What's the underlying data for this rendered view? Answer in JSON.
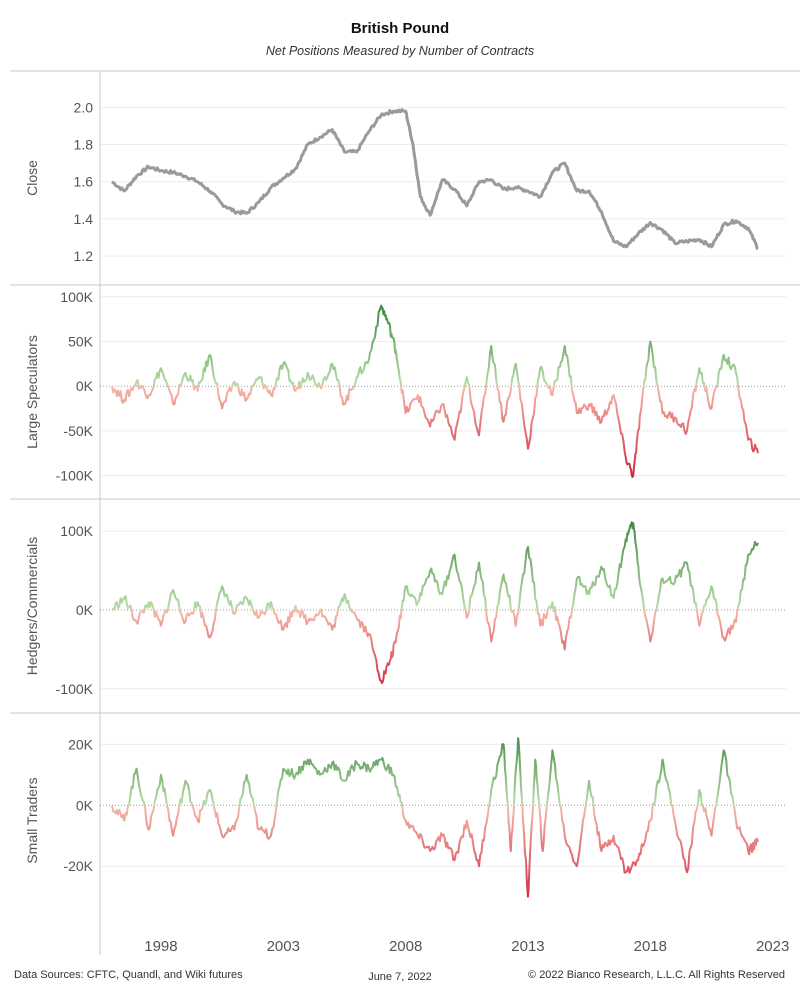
{
  "title": "British Pound",
  "subtitle": "Net Positions Measured by Number of Contracts",
  "footer": {
    "sources": "Data Sources: CFTC, Quandl, and Wiki futures",
    "date": "June 7, 2022",
    "copyright": "© 2022 Bianco Research, L.L.C. All Rights Reserved"
  },
  "colors": {
    "close_line": "#9a9a9a",
    "positive_strong": "#2e7d32",
    "positive_light": "#b8dca8",
    "negative_strong": "#c8102e",
    "negative_light": "#f6b8a8",
    "zero_line": "#999999",
    "grid": "#ececec",
    "border": "#c8c8c8"
  },
  "chart_data": [
    {
      "name": "close",
      "type": "line",
      "ylabel": "Close",
      "ylim": [
        1.12,
        2.12
      ],
      "yticks": [
        1.2,
        1.4,
        1.6,
        1.8,
        2.0
      ],
      "ytick_labels": [
        "1.2",
        "1.4",
        "1.6",
        "1.8",
        "2.0"
      ],
      "x": [
        1996.0,
        1996.5,
        1997.0,
        1997.5,
        1998.0,
        1998.5,
        1999.0,
        1999.5,
        2000.0,
        2000.5,
        2001.0,
        2001.5,
        2002.0,
        2002.5,
        2003.0,
        2003.5,
        2004.0,
        2004.5,
        2005.0,
        2005.5,
        2006.0,
        2006.5,
        2007.0,
        2007.5,
        2008.0,
        2008.3,
        2008.6,
        2009.0,
        2009.5,
        2010.0,
        2010.5,
        2011.0,
        2011.5,
        2012.0,
        2012.5,
        2013.0,
        2013.5,
        2014.0,
        2014.5,
        2015.0,
        2015.5,
        2016.0,
        2016.5,
        2017.0,
        2017.5,
        2018.0,
        2018.5,
        2019.0,
        2019.5,
        2020.0,
        2020.5,
        2021.0,
        2021.5,
        2022.0,
        2022.4
      ],
      "y": [
        1.6,
        1.55,
        1.63,
        1.68,
        1.66,
        1.65,
        1.63,
        1.6,
        1.55,
        1.48,
        1.44,
        1.43,
        1.49,
        1.57,
        1.62,
        1.67,
        1.8,
        1.84,
        1.88,
        1.76,
        1.76,
        1.87,
        1.96,
        1.98,
        1.98,
        1.8,
        1.52,
        1.42,
        1.61,
        1.56,
        1.47,
        1.6,
        1.61,
        1.56,
        1.57,
        1.55,
        1.52,
        1.65,
        1.7,
        1.55,
        1.55,
        1.44,
        1.28,
        1.25,
        1.32,
        1.38,
        1.34,
        1.27,
        1.28,
        1.29,
        1.25,
        1.37,
        1.39,
        1.35,
        1.24
      ]
    },
    {
      "name": "large_speculators",
      "type": "line",
      "ylabel": "Large Speculators",
      "ylim": [
        -115,
        102
      ],
      "yticks": [
        -100,
        -50,
        0,
        50,
        100
      ],
      "ytick_labels": [
        "-100K",
        "-50K",
        "0K",
        "50K",
        "100K"
      ],
      "x": [
        1996.0,
        1996.5,
        1997.0,
        1997.5,
        1998.0,
        1998.5,
        1999.0,
        1999.5,
        2000.0,
        2000.5,
        2001.0,
        2001.5,
        2002.0,
        2002.5,
        2003.0,
        2003.5,
        2004.0,
        2004.5,
        2005.0,
        2005.5,
        2006.0,
        2006.5,
        2007.0,
        2007.3,
        2007.6,
        2008.0,
        2008.5,
        2009.0,
        2009.5,
        2010.0,
        2010.5,
        2011.0,
        2011.5,
        2012.0,
        2012.5,
        2013.0,
        2013.5,
        2014.0,
        2014.5,
        2015.0,
        2015.5,
        2016.0,
        2016.5,
        2017.0,
        2017.3,
        2017.6,
        2018.0,
        2018.5,
        2019.0,
        2019.5,
        2020.0,
        2020.5,
        2021.0,
        2021.5,
        2022.0,
        2022.4
      ],
      "y": [
        0,
        -15,
        5,
        -10,
        20,
        -20,
        15,
        -5,
        35,
        -25,
        5,
        -15,
        10,
        -10,
        25,
        -5,
        15,
        0,
        25,
        -20,
        10,
        30,
        90,
        70,
        40,
        -30,
        -10,
        -45,
        -20,
        -60,
        10,
        -55,
        45,
        -40,
        25,
        -70,
        20,
        -10,
        45,
        -30,
        -20,
        -40,
        -10,
        -80,
        -100,
        -30,
        50,
        -30,
        -35,
        -50,
        20,
        -25,
        35,
        15,
        -60,
        -75
      ]
    },
    {
      "name": "hedgers_commercials",
      "type": "line",
      "ylabel": "Hedgers/Commercials",
      "ylim": [
        -118,
        128
      ],
      "yticks": [
        -100,
        0,
        100
      ],
      "ytick_labels": [
        "-100K",
        "0K",
        "100K"
      ],
      "x": [
        1996.0,
        1996.5,
        1997.0,
        1997.5,
        1998.0,
        1998.5,
        1999.0,
        1999.5,
        2000.0,
        2000.5,
        2001.0,
        2001.5,
        2002.0,
        2002.5,
        2003.0,
        2003.5,
        2004.0,
        2004.5,
        2005.0,
        2005.5,
        2006.0,
        2006.5,
        2007.0,
        2007.3,
        2007.6,
        2008.0,
        2008.5,
        2009.0,
        2009.5,
        2010.0,
        2010.5,
        2011.0,
        2011.5,
        2012.0,
        2012.5,
        2013.0,
        2013.5,
        2014.0,
        2014.5,
        2015.0,
        2015.5,
        2016.0,
        2016.5,
        2017.0,
        2017.3,
        2017.6,
        2018.0,
        2018.5,
        2019.0,
        2019.5,
        2020.0,
        2020.5,
        2021.0,
        2021.5,
        2022.0,
        2022.4
      ],
      "y": [
        0,
        15,
        -15,
        10,
        -20,
        25,
        -15,
        10,
        -35,
        30,
        -5,
        15,
        -10,
        10,
        -25,
        5,
        -15,
        0,
        -25,
        20,
        -10,
        -30,
        -90,
        -70,
        -40,
        30,
        10,
        50,
        20,
        70,
        -10,
        60,
        -40,
        45,
        -20,
        80,
        -20,
        10,
        -50,
        40,
        20,
        55,
        15,
        90,
        110,
        30,
        -40,
        40,
        35,
        60,
        -20,
        30,
        -35,
        -15,
        70,
        85
      ]
    },
    {
      "name": "small_traders",
      "type": "line",
      "ylabel": "Small Traders",
      "ylim": [
        -37,
        27
      ],
      "yticks": [
        -20,
        0,
        20
      ],
      "ytick_labels": [
        "-20K",
        "0K",
        "20K"
      ],
      "x": [
        1996.0,
        1996.5,
        1997.0,
        1997.5,
        1998.0,
        1998.5,
        1999.0,
        1999.5,
        2000.0,
        2000.5,
        2001.0,
        2001.5,
        2002.0,
        2002.5,
        2003.0,
        2003.5,
        2004.0,
        2004.5,
        2005.0,
        2005.5,
        2006.0,
        2006.5,
        2007.0,
        2007.5,
        2008.0,
        2008.5,
        2009.0,
        2009.5,
        2010.0,
        2010.5,
        2011.0,
        2011.5,
        2012.0,
        2012.3,
        2012.6,
        2013.0,
        2013.3,
        2013.6,
        2014.0,
        2014.5,
        2015.0,
        2015.5,
        2016.0,
        2016.5,
        2017.0,
        2017.5,
        2018.0,
        2018.5,
        2019.0,
        2019.5,
        2020.0,
        2020.5,
        2021.0,
        2021.5,
        2022.0,
        2022.4
      ],
      "y": [
        0,
        -5,
        12,
        -8,
        10,
        -10,
        8,
        -5,
        5,
        -10,
        -8,
        10,
        -8,
        -10,
        12,
        10,
        15,
        10,
        14,
        8,
        14,
        12,
        15,
        10,
        -5,
        -10,
        -15,
        -10,
        -18,
        -5,
        -20,
        5,
        20,
        -15,
        22,
        -30,
        15,
        -15,
        18,
        -10,
        -20,
        8,
        -15,
        -10,
        -22,
        -18,
        -5,
        15,
        -5,
        -22,
        5,
        -10,
        18,
        -5,
        -15,
        -12
      ]
    }
  ],
  "x_axis": {
    "ticks": [
      1998,
      2003,
      2008,
      2013,
      2018,
      2023
    ],
    "tick_labels": [
      "1998",
      "2003",
      "2008",
      "2013",
      "2018",
      "2023"
    ],
    "range": [
      1994.0,
      2023.3
    ]
  }
}
